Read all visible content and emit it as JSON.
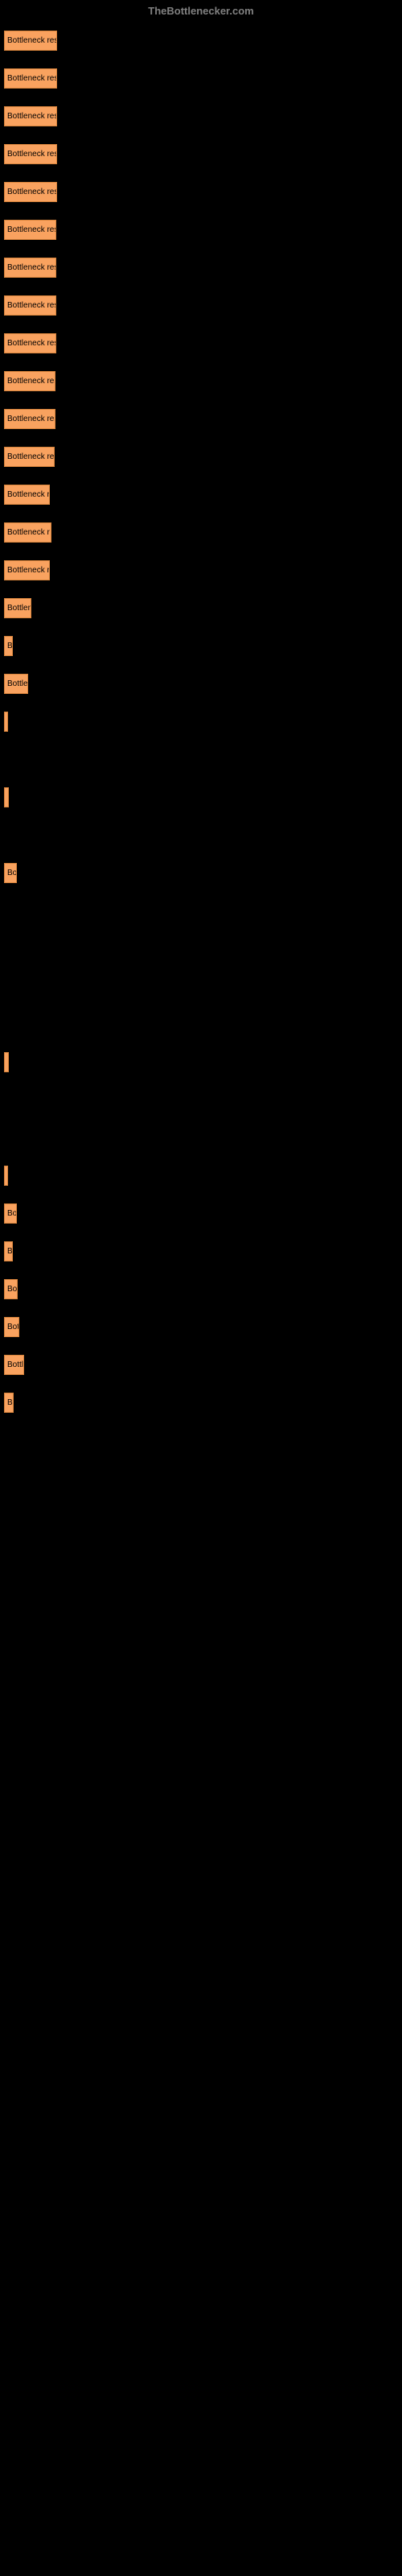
{
  "header": {
    "title": "TheBottlenecker.com"
  },
  "chart": {
    "type": "bar",
    "background_color": "#000000",
    "bar_color": "#f9a25f",
    "bar_border_color": "#d8843c",
    "label_color": "#000000",
    "label_fontsize": 10,
    "max_width": 490,
    "bars": [
      {
        "label": "Bottleneck resu",
        "width_pct": 13.5
      },
      {
        "label": "Bottleneck resu",
        "width_pct": 13.5
      },
      {
        "label": "Bottleneck resu",
        "width_pct": 13.5
      },
      {
        "label": "Bottleneck resu",
        "width_pct": 13.5
      },
      {
        "label": "Bottleneck resu",
        "width_pct": 13.5
      },
      {
        "label": "Bottleneck res",
        "width_pct": 13.3
      },
      {
        "label": "Bottleneck res",
        "width_pct": 13.3
      },
      {
        "label": "Bottleneck res",
        "width_pct": 13.3
      },
      {
        "label": "Bottleneck res",
        "width_pct": 13.3
      },
      {
        "label": "Bottleneck res",
        "width_pct": 13.1
      },
      {
        "label": "Bottleneck res",
        "width_pct": 13.1
      },
      {
        "label": "Bottleneck re",
        "width_pct": 12.9
      },
      {
        "label": "Bottleneck r",
        "width_pct": 11.7
      },
      {
        "label": "Bottleneck r",
        "width_pct": 12.0
      },
      {
        "label": "Bottleneck r",
        "width_pct": 11.7
      },
      {
        "label": "Bottlen",
        "width_pct": 7.0
      },
      {
        "label": "B",
        "width_pct": 2.3
      },
      {
        "label": "Bottle",
        "width_pct": 6.1
      },
      {
        "label": "",
        "width_pct": 1.0
      },
      {
        "label": "",
        "width_pct": 0
      },
      {
        "label": "",
        "width_pct": 1.2
      },
      {
        "label": "",
        "width_pct": 0
      },
      {
        "label": "Bo",
        "width_pct": 3.2
      },
      {
        "label": "",
        "width_pct": 0
      },
      {
        "label": "",
        "width_pct": 0
      },
      {
        "label": "",
        "width_pct": 0
      },
      {
        "label": "",
        "width_pct": 0
      },
      {
        "label": "",
        "width_pct": 1.2
      },
      {
        "label": "",
        "width_pct": 0
      },
      {
        "label": "",
        "width_pct": 0
      },
      {
        "label": "",
        "width_pct": 1.0
      },
      {
        "label": "Bo",
        "width_pct": 3.2
      },
      {
        "label": "B",
        "width_pct": 2.3
      },
      {
        "label": "Bo",
        "width_pct": 3.4
      },
      {
        "label": "Bot",
        "width_pct": 3.8
      },
      {
        "label": "Bottl",
        "width_pct": 5.2
      },
      {
        "label": "B",
        "width_pct": 2.5
      }
    ]
  }
}
